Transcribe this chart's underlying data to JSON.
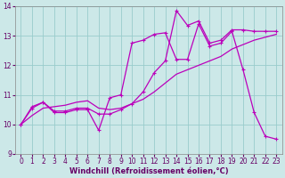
{
  "xlabel": "Windchill (Refroidissement éolien,°C)",
  "bg_color": "#cce8e8",
  "line_color": "#bb00bb",
  "grid_color": "#99cccc",
  "xlim": [
    -0.5,
    23.5
  ],
  "ylim": [
    9,
    14
  ],
  "xticks": [
    0,
    1,
    2,
    3,
    4,
    5,
    6,
    7,
    8,
    9,
    10,
    11,
    12,
    13,
    14,
    15,
    16,
    17,
    18,
    19,
    20,
    21,
    22,
    23
  ],
  "yticks": [
    9,
    10,
    11,
    12,
    13,
    14
  ],
  "line1_x": [
    0,
    1,
    2,
    3,
    4,
    5,
    6,
    7,
    8,
    9,
    10,
    11,
    12,
    13,
    14,
    15,
    16,
    17,
    18,
    19,
    20,
    21,
    22,
    23
  ],
  "line1_y": [
    10.0,
    10.6,
    10.75,
    10.4,
    10.4,
    10.5,
    10.5,
    9.8,
    10.9,
    11.0,
    12.75,
    12.85,
    13.05,
    13.1,
    12.2,
    12.2,
    13.4,
    12.65,
    12.75,
    13.15,
    11.85,
    10.4,
    9.6,
    9.5
  ],
  "line2_x": [
    0,
    1,
    2,
    3,
    4,
    5,
    6,
    7,
    8,
    9,
    10,
    11,
    12,
    13,
    14,
    15,
    16,
    17,
    18,
    19,
    20,
    21,
    22,
    23
  ],
  "line2_y": [
    10.0,
    10.3,
    10.55,
    10.6,
    10.65,
    10.75,
    10.8,
    10.55,
    10.5,
    10.55,
    10.7,
    10.85,
    11.1,
    11.4,
    11.7,
    11.85,
    12.0,
    12.15,
    12.3,
    12.55,
    12.7,
    12.85,
    12.95,
    13.05
  ],
  "line3_x": [
    0,
    1,
    2,
    3,
    4,
    5,
    6,
    7,
    8,
    9,
    10,
    11,
    12,
    13,
    14,
    15,
    16,
    17,
    18,
    19,
    20,
    21,
    22,
    23
  ],
  "line3_y": [
    10.0,
    10.55,
    10.75,
    10.45,
    10.45,
    10.55,
    10.55,
    10.35,
    10.35,
    10.5,
    10.7,
    11.1,
    11.75,
    12.15,
    13.85,
    13.35,
    13.5,
    12.75,
    12.85,
    13.2,
    13.2,
    13.15,
    13.15,
    13.15
  ],
  "tick_fontsize": 5.5,
  "xlabel_fontsize": 6.0,
  "axis_color": "#660066",
  "linewidth": 0.9,
  "markersize": 3.5
}
